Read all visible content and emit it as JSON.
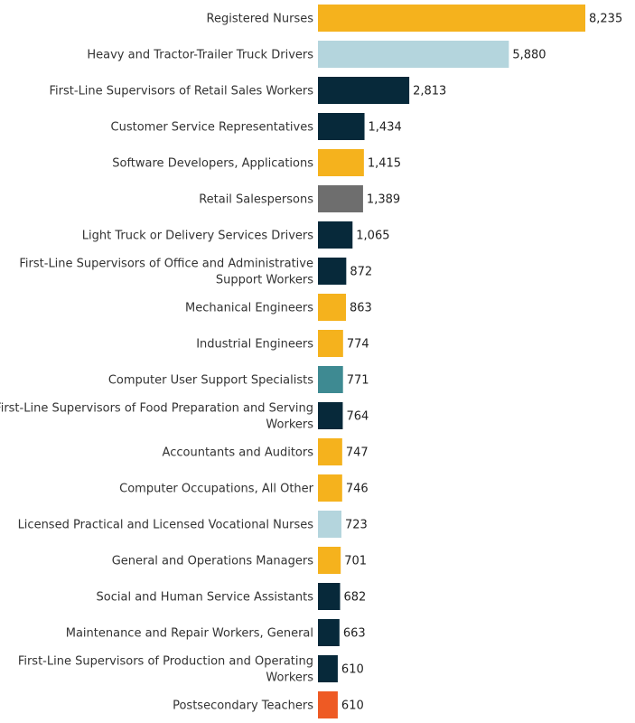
{
  "chart_data": {
    "type": "bar",
    "orientation": "horizontal",
    "title": "",
    "xlabel": "",
    "ylabel": "",
    "xlim": [
      0,
      8235
    ],
    "grid": false,
    "legend": "none",
    "categories": [
      "Registered Nurses",
      "Heavy and Tractor-Trailer Truck Drivers",
      "First-Line Supervisors of Retail Sales Workers",
      "Customer Service Representatives",
      "Software Developers, Applications",
      "Retail Salespersons",
      "Light Truck or Delivery Services Drivers",
      "First-Line Supervisors of Office and Administrative Support Workers",
      "Mechanical Engineers",
      "Industrial Engineers",
      "Computer User Support Specialists",
      "First-Line Supervisors of Food Preparation and Serving Workers",
      "Accountants and Auditors",
      "Computer Occupations, All Other",
      "Licensed Practical and Licensed Vocational Nurses",
      "General and Operations Managers",
      "Social and Human Service Assistants",
      "Maintenance and Repair Workers, General",
      "First-Line Supervisors of Production and Operating Workers",
      "Postsecondary Teachers"
    ],
    "category_lines": [
      [
        "Registered Nurses"
      ],
      [
        "Heavy and Tractor-Trailer Truck Drivers"
      ],
      [
        "First-Line Supervisors of Retail Sales Workers"
      ],
      [
        "Customer Service Representatives"
      ],
      [
        "Software Developers, Applications"
      ],
      [
        "Retail Salespersons"
      ],
      [
        "Light Truck or Delivery Services Drivers"
      ],
      [
        "First-Line Supervisors of Office and Administrative",
        "Support Workers"
      ],
      [
        "Mechanical Engineers"
      ],
      [
        "Industrial Engineers"
      ],
      [
        "Computer User Support Specialists"
      ],
      [
        "First-Line Supervisors of Food Preparation and Serving",
        "Workers"
      ],
      [
        "Accountants and Auditors"
      ],
      [
        "Computer Occupations, All Other"
      ],
      [
        "Licensed Practical and Licensed Vocational Nurses"
      ],
      [
        "General and Operations Managers"
      ],
      [
        "Social and Human Service Assistants"
      ],
      [
        "Maintenance and Repair Workers, General"
      ],
      [
        "First-Line Supervisors of Production and Operating",
        "Workers"
      ],
      [
        "Postsecondary Teachers"
      ]
    ],
    "values": [
      8235,
      5880,
      2813,
      1434,
      1415,
      1389,
      1065,
      872,
      863,
      774,
      771,
      764,
      747,
      746,
      723,
      701,
      682,
      663,
      610,
      610
    ],
    "value_labels": [
      "8,235",
      "5,880",
      "2,813",
      "1,434",
      "1,415",
      "1,389",
      "1,065",
      "872",
      "863",
      "774",
      "771",
      "764",
      "747",
      "746",
      "723",
      "701",
      "682",
      "663",
      "610",
      "610"
    ],
    "colors": [
      "#F5B21D",
      "#B4D5DD",
      "#07293A",
      "#07293A",
      "#F5B21D",
      "#6E6E6E",
      "#07293A",
      "#07293A",
      "#F5B21D",
      "#F5B21D",
      "#3E8A92",
      "#07293A",
      "#F5B21D",
      "#F5B21D",
      "#B4D5DD",
      "#F5B21D",
      "#07293A",
      "#07293A",
      "#07293A",
      "#EE5A24"
    ]
  }
}
